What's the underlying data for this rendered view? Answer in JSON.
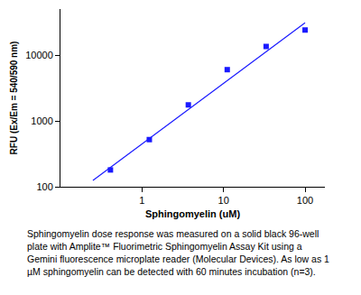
{
  "chart_data": {
    "type": "scatter",
    "x_label": "Sphingomyelin (uM)",
    "y_label": "RFU (Ex/Em = 540/590 nm)",
    "log": true,
    "grid": false,
    "xlim": [
      0.1,
      175
    ],
    "xticks": [
      1,
      10,
      100
    ],
    "ylim": [
      100,
      50000
    ],
    "yticks": [
      100,
      1000,
      10000
    ],
    "series": [
      {
        "type": "scatter",
        "marker": "square",
        "color": "#1a1aff",
        "x": [
          0.41,
          1.23,
          3.7,
          11.1,
          33.3,
          100
        ],
        "values": [
          180,
          520,
          1750,
          6000,
          13500,
          24000
        ]
      },
      {
        "type": "line",
        "line_style": "solid",
        "color": "#1a1aff",
        "x": [
          0.25,
          100
        ],
        "values": [
          125,
          31000
        ]
      }
    ],
    "caption": [
      "Sphingomyelin dose response was measured on a solid black 96-well",
      "plate with Amplite™ Fluorimetric Sphingomyelin Assay Kit using a",
      "Gemini fluorescence microplate reader (Molecular Devices). As low as 1",
      "µM sphingomyelin can be detected with 60 minutes incubation (n=3)."
    ]
  }
}
